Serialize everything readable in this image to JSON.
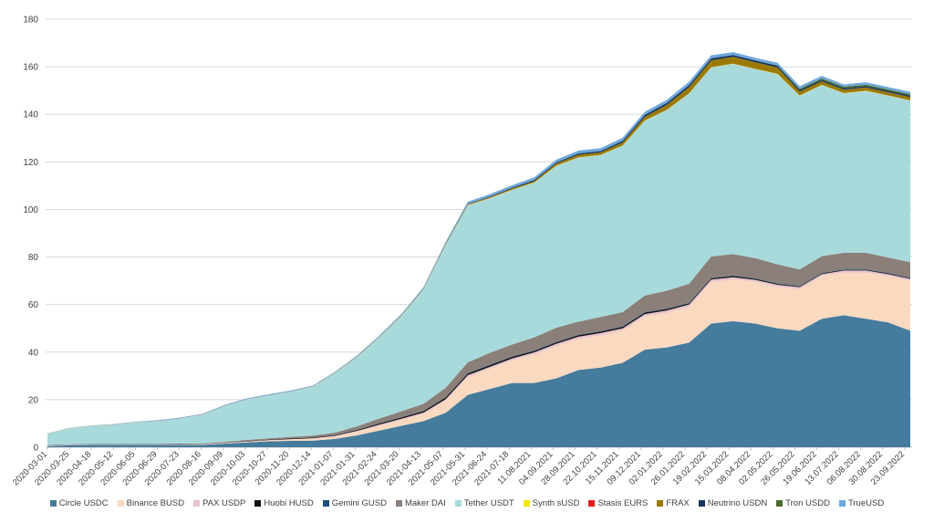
{
  "chart_data": {
    "type": "area",
    "stacked": true,
    "title": "",
    "xlabel": "",
    "ylabel": "",
    "ylim": [
      0,
      180
    ],
    "yticks": [
      0,
      20,
      40,
      60,
      80,
      100,
      120,
      140,
      160,
      180
    ],
    "grid": true,
    "legend_position": "bottom",
    "x_tick_labels": [
      "2020-03-01",
      "2020-03-25",
      "2020-04-18",
      "2020-05-12",
      "2020-06-05",
      "2020-06-29",
      "2020-07-23",
      "2020-08-16",
      "2020-09-09",
      "2020-10-03",
      "2020-10-27",
      "2020-11-20",
      "2020-12-14",
      "2021-01-07",
      "2021-01-31",
      "2021-02-24",
      "2021-03-20",
      "2021-04-13",
      "2021-05-07",
      "2021-05-31",
      "2021-06-24",
      "2021-07-18",
      "11.08.2021",
      "04.09.2021",
      "28.09.2021",
      "22.10.2021",
      "15.11.2021",
      "09.12.2021",
      "02.01.2022",
      "26.01.2022",
      "19.02.2022",
      "15.03.2022",
      "08.04.2022",
      "02.05.2022",
      "26.05.2022",
      "19.06.2022",
      "13.07.2022",
      "06.08.2022",
      "30.08.2022",
      "23.09.2022"
    ],
    "series": [
      {
        "name": "Circle USDC",
        "color": "#457b9d",
        "values": [
          0.5,
          0.8,
          1.0,
          1.0,
          1.0,
          1.0,
          1.0,
          1.0,
          1.5,
          2.0,
          2.5,
          2.7,
          2.8,
          3.5,
          5.0,
          7.0,
          9.0,
          11.0,
          14.5,
          22.0,
          24.5,
          27.0,
          27.0,
          29.0,
          32.5,
          33.5,
          35.5,
          41.0,
          42.0,
          44.0,
          52.0,
          53.0,
          52.0,
          50.0,
          49.0,
          54.0,
          55.5,
          54.0,
          52.5,
          49.0
        ]
      },
      {
        "name": "Binance BUSD",
        "color": "#f9d9c0",
        "values": [
          0.1,
          0.1,
          0.1,
          0.1,
          0.1,
          0.1,
          0.1,
          0.2,
          0.2,
          0.3,
          0.4,
          0.6,
          0.8,
          1.0,
          1.5,
          2.0,
          2.5,
          3.0,
          5.0,
          7.5,
          8.5,
          9.5,
          12.0,
          13.5,
          13.0,
          13.5,
          13.5,
          14.0,
          14.5,
          15.0,
          17.5,
          17.5,
          17.5,
          17.5,
          17.5,
          18.0,
          18.0,
          19.5,
          19.5,
          21.0
        ]
      },
      {
        "name": "PAX USDP",
        "color": "#e8c4cc",
        "values": [
          0.1,
          0.1,
          0.1,
          0.1,
          0.1,
          0.1,
          0.1,
          0.1,
          0.1,
          0.1,
          0.1,
          0.1,
          0.2,
          0.3,
          0.4,
          0.5,
          0.5,
          0.6,
          0.7,
          0.8,
          0.8,
          0.8,
          0.9,
          1.0,
          1.0,
          1.0,
          1.0,
          1.0,
          1.0,
          1.0,
          1.0,
          1.0,
          0.9,
          0.8,
          0.8,
          0.8,
          0.8,
          0.8,
          0.8,
          0.8
        ]
      },
      {
        "name": "Huobi HUSD",
        "color": "#111111",
        "values": [
          0.1,
          0.1,
          0.1,
          0.1,
          0.1,
          0.1,
          0.1,
          0.1,
          0.1,
          0.2,
          0.2,
          0.3,
          0.3,
          0.3,
          0.4,
          0.5,
          0.5,
          0.6,
          0.7,
          0.7,
          0.7,
          0.7,
          0.6,
          0.6,
          0.6,
          0.6,
          0.6,
          0.6,
          0.6,
          0.5,
          0.5,
          0.5,
          0.4,
          0.4,
          0.3,
          0.3,
          0.3,
          0.3,
          0.3,
          0.3
        ]
      },
      {
        "name": "Gemini GUSD",
        "color": "#1f4e79",
        "values": [
          0.05,
          0.05,
          0.05,
          0.05,
          0.05,
          0.05,
          0.05,
          0.05,
          0.05,
          0.05,
          0.05,
          0.05,
          0.05,
          0.05,
          0.05,
          0.1,
          0.1,
          0.1,
          0.1,
          0.2,
          0.2,
          0.2,
          0.2,
          0.2,
          0.2,
          0.2,
          0.2,
          0.2,
          0.2,
          0.2,
          0.2,
          0.2,
          0.2,
          0.2,
          0.2,
          0.2,
          0.2,
          0.2,
          0.2,
          0.2
        ]
      },
      {
        "name": "Maker DAI",
        "color": "#8b7f79",
        "values": [
          0.1,
          0.1,
          0.1,
          0.1,
          0.1,
          0.1,
          0.2,
          0.2,
          0.3,
          0.4,
          0.5,
          0.6,
          0.8,
          1.0,
          1.5,
          2.0,
          2.5,
          3.0,
          4.0,
          4.5,
          5.0,
          5.0,
          5.5,
          6.0,
          5.5,
          6.0,
          6.0,
          7.0,
          7.5,
          8.0,
          9.0,
          9.0,
          8.5,
          8.0,
          7.0,
          7.0,
          7.0,
          7.0,
          6.5,
          6.5
        ]
      },
      {
        "name": "Tether USDT",
        "color": "#a8dadc",
        "values": [
          4.7,
          6.7,
          7.5,
          8.0,
          9.0,
          9.5,
          10.5,
          12.0,
          15.0,
          17.0,
          18.0,
          19.0,
          20.5,
          25.0,
          29.0,
          34.0,
          40.0,
          48.0,
          60.0,
          66.0,
          65.0,
          65.0,
          65.0,
          68.0,
          69.0,
          68.0,
          70.0,
          73.5,
          76.0,
          80.0,
          79.5,
          80.0,
          79.5,
          80.0,
          73.0,
          72.0,
          67.0,
          68.0,
          68.0,
          68.0
        ]
      },
      {
        "name": "Synth sUSD",
        "color": "#f5e600",
        "values": [
          0.05,
          0.05,
          0.05,
          0.05,
          0.05,
          0.05,
          0.05,
          0.05,
          0.05,
          0.05,
          0.05,
          0.05,
          0.05,
          0.1,
          0.1,
          0.1,
          0.1,
          0.1,
          0.1,
          0.1,
          0.1,
          0.1,
          0.1,
          0.1,
          0.1,
          0.1,
          0.1,
          0.1,
          0.1,
          0.1,
          0.1,
          0.1,
          0.1,
          0.1,
          0.1,
          0.1,
          0.1,
          0.1,
          0.1,
          0.1
        ]
      },
      {
        "name": "Stasis EURS",
        "color": "#e02020",
        "values": [
          0.05,
          0.05,
          0.05,
          0.05,
          0.05,
          0.05,
          0.05,
          0.05,
          0.05,
          0.05,
          0.05,
          0.05,
          0.05,
          0.05,
          0.05,
          0.05,
          0.05,
          0.05,
          0.05,
          0.05,
          0.05,
          0.05,
          0.05,
          0.05,
          0.05,
          0.05,
          0.05,
          0.05,
          0.05,
          0.05,
          0.05,
          0.05,
          0.05,
          0.05,
          0.05,
          0.05,
          0.05,
          0.05,
          0.05,
          0.05
        ]
      },
      {
        "name": "FRAX",
        "color": "#9a7a00",
        "values": [
          0,
          0,
          0,
          0,
          0,
          0,
          0,
          0,
          0,
          0,
          0,
          0,
          0,
          0.05,
          0.1,
          0.1,
          0.2,
          0.2,
          0.3,
          0.3,
          0.3,
          0.4,
          0.5,
          0.8,
          1.0,
          1.0,
          1.2,
          1.5,
          2.0,
          2.5,
          2.8,
          2.8,
          2.7,
          2.6,
          1.6,
          1.4,
          1.4,
          1.3,
          1.3,
          1.3
        ]
      },
      {
        "name": "Neutrino USDN",
        "color": "#17375e",
        "values": [
          0,
          0,
          0,
          0,
          0,
          0,
          0,
          0,
          0,
          0,
          0,
          0,
          0,
          0,
          0,
          0,
          0,
          0,
          0.1,
          0.2,
          0.3,
          0.4,
          0.5,
          0.5,
          0.6,
          0.6,
          0.7,
          0.8,
          0.9,
          0.9,
          0.9,
          0.8,
          0.8,
          0.8,
          0.7,
          0.6,
          0.6,
          0.6,
          0.6,
          0.6
        ]
      },
      {
        "name": "Tron USDD",
        "color": "#4a6b2a",
        "values": [
          0,
          0,
          0,
          0,
          0,
          0,
          0,
          0,
          0,
          0,
          0,
          0,
          0,
          0,
          0,
          0,
          0,
          0,
          0,
          0,
          0,
          0,
          0,
          0,
          0,
          0,
          0,
          0,
          0,
          0,
          0,
          0,
          0,
          0.1,
          0.5,
          0.6,
          0.6,
          0.6,
          0.6,
          0.6
        ]
      },
      {
        "name": "TrueUSD",
        "color": "#6fa8dc",
        "values": [
          0.1,
          0.1,
          0.1,
          0.2,
          0.2,
          0.3,
          0.3,
          0.3,
          0.4,
          0.4,
          0.4,
          0.4,
          0.4,
          0.4,
          0.5,
          0.6,
          0.6,
          0.7,
          0.8,
          0.9,
          1.0,
          1.0,
          1.1,
          1.2,
          1.2,
          1.2,
          1.3,
          1.3,
          1.3,
          1.4,
          1.3,
          1.2,
          1.1,
          1.1,
          1.1,
          1.1,
          1.0,
          1.0,
          1.0,
          1.0
        ]
      }
    ]
  }
}
